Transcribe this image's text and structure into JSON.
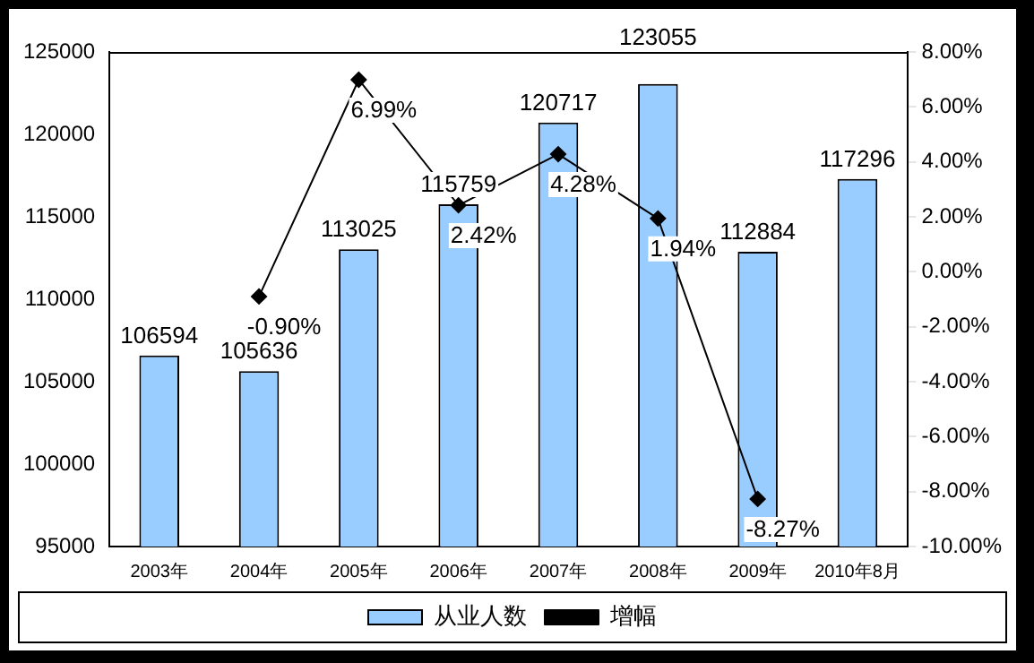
{
  "chart_data": {
    "type": "bar",
    "categories": [
      "2003年",
      "2004年",
      "2005年",
      "2006年",
      "2007年",
      "2008年",
      "2009年",
      "2010年8月"
    ],
    "series": [
      {
        "name": "从业人数",
        "color": "#99ccff",
        "values": [
          106594,
          105636,
          113025,
          115759,
          120717,
          123055,
          112884,
          117296
        ],
        "value_labels": [
          "106594",
          "105636",
          "113025",
          "115759",
          "120717",
          "123055",
          "112884",
          "117296"
        ]
      },
      {
        "name": "增幅",
        "type": "line",
        "axis": "y2",
        "color": "#000000",
        "values": [
          null,
          -0.9,
          6.99,
          2.42,
          4.28,
          1.94,
          -8.27,
          null
        ],
        "value_labels": [
          null,
          "-0.90%",
          "6.99%",
          "2.42%",
          "4.28%",
          "1.94%",
          "-8.27%",
          null
        ]
      }
    ],
    "ylim": [
      95000,
      125000
    ],
    "yticks": [
      95000,
      100000,
      105000,
      110000,
      115000,
      120000,
      125000
    ],
    "y2lim": [
      -10,
      8
    ],
    "y2ticks": [
      {
        "value": -10,
        "label": "-10.00%"
      },
      {
        "value": -8,
        "label": "-8.00%"
      },
      {
        "value": -6,
        "label": "-6.00%"
      },
      {
        "value": -4,
        "label": "-4.00%"
      },
      {
        "value": -2,
        "label": "-2.00%"
      },
      {
        "value": 0,
        "label": "0.00%"
      },
      {
        "value": 2,
        "label": "2.00%"
      },
      {
        "value": 4,
        "label": "4.00%"
      },
      {
        "value": 6,
        "label": "6.00%"
      },
      {
        "value": 8,
        "label": "8.00%"
      }
    ],
    "grid": false,
    "legend": "bottom",
    "marker": "diamond",
    "line_style": "solid"
  }
}
